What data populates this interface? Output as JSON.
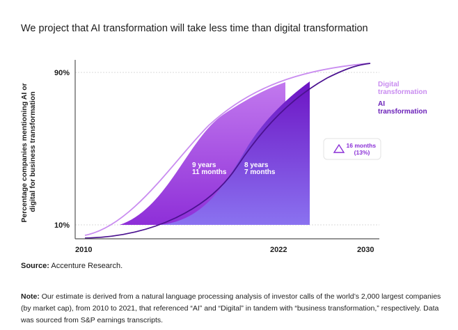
{
  "title": "We project that AI transformation will take less time than digital transformation",
  "chart_data": {
    "type": "area",
    "ylabel_line1": "Percentage companies mentioning AI or",
    "ylabel_line2": "digital for business transformation",
    "yticks": [
      "90%",
      "10%"
    ],
    "xticks": [
      "2010",
      "2022",
      "2030"
    ],
    "series": [
      {
        "name": "Digital transformation",
        "label_line1": "Digital",
        "label_line2": "transformation",
        "color": "#c98cf0",
        "start": 2010,
        "reach90": 2030
      },
      {
        "name": "AI transformation",
        "label_line1": "AI",
        "label_line2": "transformation",
        "color": "#6a1fb8",
        "start": 2010,
        "reach90": 2030
      }
    ],
    "durations": [
      {
        "line1": "9 years",
        "line2": "11 months",
        "color": "#a656e6"
      },
      {
        "line1": "8 years",
        "line2": "7 months",
        "color": "#7e3cd9"
      }
    ],
    "callout": {
      "line1": "16 months",
      "line2": "(13%)",
      "color": "#8a2fd6"
    }
  },
  "source_label": "Source:",
  "source_text": "Accenture Research.",
  "note_label": "Note:",
  "note_text": "Our estimate is derived from a natural language processing analysis of investor calls of the world’s 2,000 largest companies (by market cap), from 2010 to 2021, that referenced “AI” and “Digital” in tandem with “business transformation,” respectively. Data was sourced from S&P earnings transcripts."
}
